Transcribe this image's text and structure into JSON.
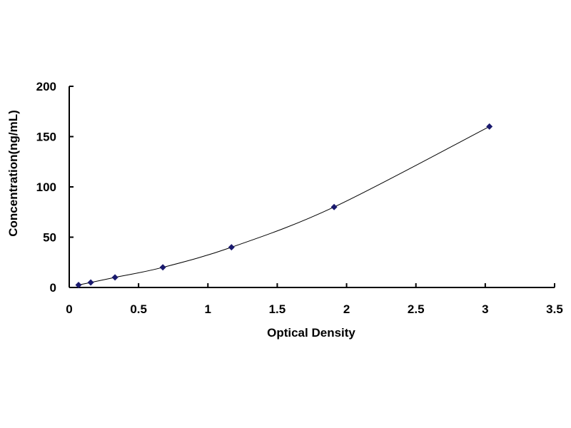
{
  "chart_data": {
    "type": "scatter",
    "title": "",
    "xlabel": "Optical Density",
    "ylabel": "Concentration(ng/mL)",
    "xlim": [
      0,
      3.5
    ],
    "ylim": [
      0,
      200
    ],
    "xticks": [
      "0",
      "0.5",
      "1",
      "1.5",
      "2",
      "2.5",
      "3",
      "3.5"
    ],
    "yticks": [
      "0",
      "50",
      "100",
      "150",
      "200"
    ],
    "grid": false,
    "trendline": "smooth curve through points",
    "marker": "diamond",
    "colors": {
      "marker": "#1a1a6e",
      "line": "#000000"
    },
    "points": [
      {
        "x": 0.067,
        "y": 2.5
      },
      {
        "x": 0.155,
        "y": 5
      },
      {
        "x": 0.33,
        "y": 10
      },
      {
        "x": 0.675,
        "y": 20
      },
      {
        "x": 1.17,
        "y": 40
      },
      {
        "x": 1.91,
        "y": 80
      },
      {
        "x": 3.03,
        "y": 160
      }
    ]
  }
}
